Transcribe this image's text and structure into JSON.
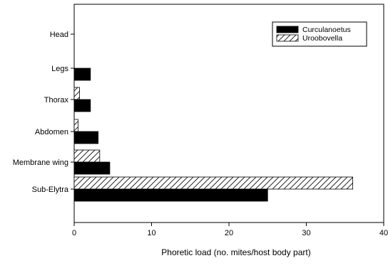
{
  "chart_data": {
    "type": "bar",
    "orientation": "horizontal",
    "title": "",
    "xlabel": "Phoretic load (no. mites/host body part)",
    "ylabel": "",
    "xlim": [
      0,
      40
    ],
    "xticks": [
      0,
      10,
      20,
      30,
      40
    ],
    "grid": false,
    "legend_position": "top-right",
    "categories": [
      "Head",
      "Legs",
      "Thorax",
      "Abdomen",
      "Membrane wing",
      "Sub-Elytra"
    ],
    "series": [
      {
        "name": "Curculanoetus",
        "fill": "solid",
        "color": "#000000",
        "values": [
          0,
          2.1,
          2.1,
          3.1,
          4.6,
          25
        ]
      },
      {
        "name": "Uroobovella",
        "fill": "hatched",
        "color": "#ffffff",
        "values": [
          0,
          0,
          0.7,
          0.5,
          3.3,
          36
        ]
      }
    ]
  }
}
